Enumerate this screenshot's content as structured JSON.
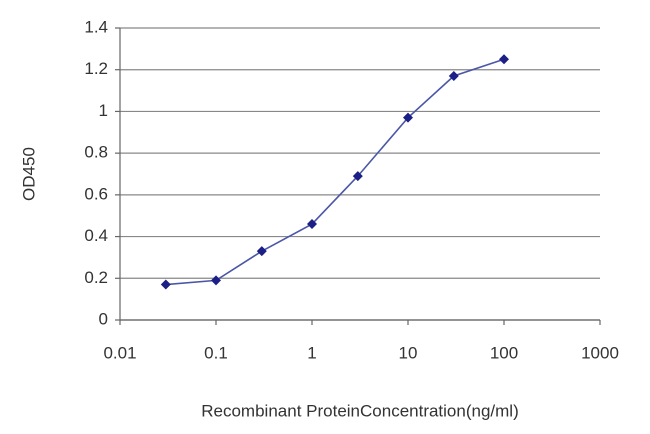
{
  "chart_data": {
    "type": "line",
    "x_label": "Recombinant ProteinConcentration(ng/ml)",
    "y_label": "OD450",
    "x": [
      0.03,
      0.1,
      0.3,
      1,
      3,
      10,
      30,
      100
    ],
    "series": [
      {
        "color": "#1c1f85",
        "values": [
          0.17,
          0.19,
          0.33,
          0.46,
          0.69,
          0.97,
          1.17,
          1.25
        ]
      }
    ],
    "x_scale": "log",
    "xlim": [
      0.01,
      1000
    ],
    "xticks": [
      0.01,
      0.1,
      1,
      10,
      100,
      1000
    ],
    "ylim": [
      0,
      1.4
    ],
    "yticks": [
      0,
      0.2,
      0.4,
      0.6,
      0.8,
      1,
      1.2,
      1.4
    ],
    "grid": true
  }
}
